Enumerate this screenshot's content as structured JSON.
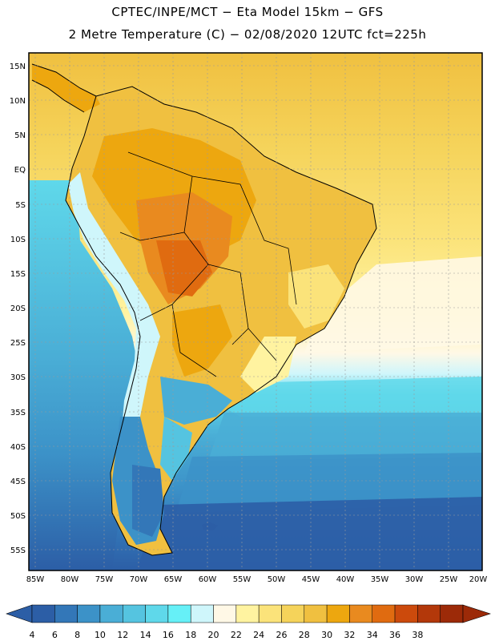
{
  "title_line1": "CPTEC/INPE/MCT −  Eta Model 15km − GFS",
  "title_line2": "2 Metre Temperature (C) − 02/08/2020 12UTC fct=225h",
  "lat_labels": [
    "15N",
    "10N",
    "5N",
    "EQ",
    "5S",
    "10S",
    "15S",
    "20S",
    "25S",
    "30S",
    "35S",
    "40S",
    "45S",
    "50S",
    "55S"
  ],
  "lon_labels": [
    "85W",
    "80W",
    "75W",
    "70W",
    "65W",
    "60W",
    "55W",
    "50W",
    "45W",
    "40W",
    "35W",
    "30W",
    "25W",
    "20W"
  ],
  "colorbar": {
    "labels": [
      "4",
      "6",
      "8",
      "10",
      "12",
      "14",
      "16",
      "18",
      "20",
      "22",
      "24",
      "26",
      "28",
      "30",
      "32",
      "34",
      "36",
      "38"
    ],
    "colors": [
      "#2c5ea6",
      "#3377b8",
      "#3c92c8",
      "#4aaed6",
      "#55c4e0",
      "#5fd8ea",
      "#66f0f7",
      "#cff6fb",
      "#fff8e6",
      "#fff3a0",
      "#fbe37a",
      "#f5d35a",
      "#f0c040",
      "#eda70f",
      "#e98a1f",
      "#e06b10",
      "#cc4a0c",
      "#b3380a",
      "#9c2a08"
    ],
    "low_color": "#2c5ea6",
    "high_color": "#9c2a08"
  }
}
